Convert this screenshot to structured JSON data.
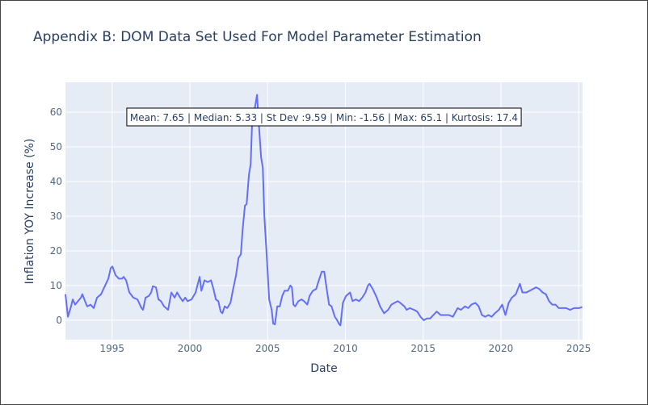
{
  "chart_data": {
    "type": "line",
    "title": "Appendix B: DOM Data Set Used For Model Parameter Estimation",
    "x_label": "Date",
    "y_label": "Inflation YOY Increase (%)",
    "annotation": "Mean: 7.65 | Median: 5.33 | St Dev :9.59 | Min: -1.56 | Max: 65.1 | Kurtosis: 17.4",
    "xlim": [
      1992.0,
      2025.25
    ],
    "ylim": [
      -5.6,
      68.6
    ],
    "xticks": [
      1995,
      2000,
      2005,
      2010,
      2015,
      2020,
      2025
    ],
    "yticks": [
      0,
      10,
      20,
      30,
      40,
      50,
      60
    ],
    "grid": true,
    "series": [
      {
        "color": "#636efa",
        "x": [
          1992.0,
          1992.16,
          1992.36,
          1992.47,
          1992.62,
          1992.99,
          1993.09,
          1993.3,
          1993.4,
          1993.61,
          1993.82,
          1994.03,
          1994.29,
          1994.55,
          1994.76,
          1994.91,
          1995.02,
          1995.22,
          1995.43,
          1995.64,
          1995.74,
          1995.9,
          1996.11,
          1996.37,
          1996.63,
          1996.89,
          1996.99,
          1997.15,
          1997.36,
          1997.51,
          1997.62,
          1997.82,
          1997.98,
          1998.14,
          1998.34,
          1998.6,
          1998.81,
          1999.02,
          1999.18,
          1999.38,
          1999.54,
          1999.7,
          1999.85,
          2000.11,
          2000.37,
          2000.63,
          2000.74,
          2000.94,
          2001.15,
          2001.36,
          2001.52,
          2001.67,
          2001.83,
          2001.98,
          2002.09,
          2002.24,
          2002.4,
          2002.61,
          2002.76,
          2002.97,
          2003.13,
          2003.28,
          2003.39,
          2003.54,
          2003.65,
          2003.8,
          2003.91,
          2004.01,
          2004.17,
          2004.32,
          2004.43,
          2004.58,
          2004.69,
          2004.79,
          2004.95,
          2005.1,
          2005.26,
          2005.36,
          2005.47,
          2005.62,
          2005.78,
          2005.94,
          2006.09,
          2006.3,
          2006.46,
          2006.56,
          2006.66,
          2006.77,
          2006.98,
          2007.18,
          2007.34,
          2007.55,
          2007.7,
          2007.91,
          2008.12,
          2008.33,
          2008.48,
          2008.64,
          2008.8,
          2008.95,
          2009.11,
          2009.32,
          2009.47,
          2009.58,
          2009.68,
          2009.84,
          2010.04,
          2010.3,
          2010.46,
          2010.67,
          2010.88,
          2011.08,
          2011.29,
          2011.45,
          2011.55,
          2011.76,
          2012.02,
          2012.23,
          2012.49,
          2012.75,
          2012.96,
          2013.16,
          2013.37,
          2013.53,
          2013.79,
          2013.94,
          2014.15,
          2014.41,
          2014.62,
          2014.83,
          2015.04,
          2015.24,
          2015.45,
          2015.66,
          2015.87,
          2016.13,
          2016.39,
          2016.65,
          2016.91,
          2017.22,
          2017.43,
          2017.69,
          2017.9,
          2018.1,
          2018.36,
          2018.57,
          2018.78,
          2018.99,
          2019.2,
          2019.4,
          2019.61,
          2019.87,
          2020.08,
          2020.29,
          2020.5,
          2020.7,
          2020.96,
          2021.22,
          2021.38,
          2021.64,
          2021.85,
          2022.06,
          2022.26,
          2022.47,
          2022.68,
          2022.89,
          2023.1,
          2023.3,
          2023.51,
          2023.72,
          2023.93,
          2024.19,
          2024.45,
          2024.71,
          2025.02,
          2025.23
        ],
        "values": [
          7.5,
          1,
          4,
          6,
          4.5,
          6.5,
          7.5,
          5,
          4,
          4.5,
          3.5,
          6.5,
          7.5,
          10,
          12,
          15,
          15.5,
          13,
          12,
          12,
          12.5,
          11.5,
          8,
          6.5,
          6,
          3.5,
          3,
          6.5,
          7,
          8,
          9.8,
          9.5,
          6,
          5.5,
          4,
          3,
          8,
          6.5,
          8,
          6.5,
          5.5,
          6.5,
          5.5,
          6,
          8,
          12.5,
          8.5,
          11.5,
          11,
          11.5,
          9,
          6,
          5.5,
          2.5,
          2,
          4,
          3.5,
          5,
          8.5,
          13,
          18,
          19,
          26,
          33,
          33.5,
          42,
          45,
          58,
          61,
          65,
          57,
          47,
          44,
          30,
          18,
          6,
          3,
          -1,
          -1.2,
          4,
          4,
          7,
          8.5,
          8.5,
          10,
          9.5,
          4.5,
          4,
          5.5,
          6,
          5.5,
          4.5,
          7,
          8.5,
          9,
          12,
          14,
          14,
          9,
          4.5,
          4,
          1,
          0,
          -1,
          -1.5,
          5,
          7,
          8,
          5.5,
          6,
          5.5,
          6.5,
          8,
          10,
          10.5,
          9,
          6.5,
          4,
          2,
          3,
          4.5,
          5,
          5.5,
          5,
          4,
          3,
          3.5,
          3,
          2.5,
          1,
          0,
          0.5,
          0.5,
          1.5,
          2.5,
          1.5,
          1.5,
          1.5,
          1,
          3.5,
          3,
          4,
          3.5,
          4.5,
          5,
          4,
          1.5,
          1,
          1.5,
          1,
          2,
          3,
          4.5,
          1.5,
          5,
          6.5,
          7.5,
          10.5,
          8,
          8,
          8.5,
          9,
          9.5,
          9,
          8,
          7.5,
          5.5,
          4.5,
          4.5,
          3.5,
          3.5,
          3.5,
          3,
          3.5,
          3.5,
          3.8
        ]
      }
    ]
  }
}
